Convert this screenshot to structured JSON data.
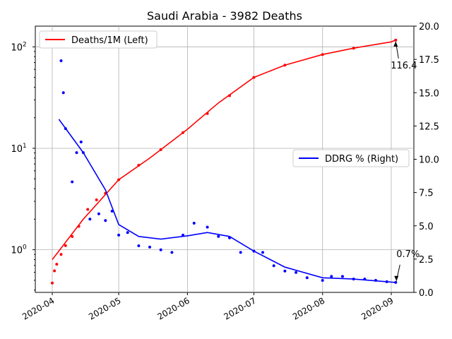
{
  "chart_data": {
    "type": "line",
    "title": "Saudi Arabia - 3982 Deaths",
    "x_ticks": [
      "2020-04",
      "2020-05",
      "2020-06",
      "2020-07",
      "2020-08",
      "2020-09"
    ],
    "x_range": [
      "2020-04-01",
      "2020-09-04"
    ],
    "left_axis": {
      "scale": "log",
      "ylim": [
        0.38,
        160
      ],
      "tick_labels": [
        "10^0",
        "10^1",
        "10^2"
      ],
      "grid": true
    },
    "right_axis": {
      "scale": "linear",
      "ylim": [
        0,
        20
      ],
      "tick_labels": [
        "0.0",
        "2.5",
        "5.0",
        "7.5",
        "10.0",
        "12.5",
        "15.0",
        "17.5",
        "20.0"
      ]
    },
    "legends": [
      {
        "label": "Deaths/1M (Left)",
        "color": "#ff0000",
        "placement": "upper-left"
      },
      {
        "label": "DDRG % (Right)",
        "color": "#0000ff",
        "placement": "center-right"
      }
    ],
    "annotations": [
      {
        "text": "116.4",
        "x": "2020-09-03",
        "series": "Deaths/1M (Left)",
        "y": 116.4
      },
      {
        "text": "0.7%",
        "x": "2020-09-03",
        "series": "DDRG % (Right)",
        "y": 0.7
      }
    ],
    "series": [
      {
        "name": "Deaths/1M (Left)",
        "axis": "left",
        "color": "#ff0000",
        "line_points": [
          {
            "x": "2020-04-01",
            "y": 0.8
          },
          {
            "x": "2020-04-15",
            "y": 2.0
          },
          {
            "x": "2020-05-01",
            "y": 4.9
          },
          {
            "x": "2020-05-15",
            "y": 8.0
          },
          {
            "x": "2020-06-01",
            "y": 15.4
          },
          {
            "x": "2020-06-15",
            "y": 28.0
          },
          {
            "x": "2020-07-01",
            "y": 50.0
          },
          {
            "x": "2020-07-15",
            "y": 66.0
          },
          {
            "x": "2020-08-01",
            "y": 84.0
          },
          {
            "x": "2020-08-15",
            "y": 97.0
          },
          {
            "x": "2020-09-01",
            "y": 112.0
          },
          {
            "x": "2020-09-03",
            "y": 116.4
          }
        ],
        "dot_points": [
          {
            "x": "2020-04-01",
            "y": 0.47
          },
          {
            "x": "2020-04-02",
            "y": 0.62
          },
          {
            "x": "2020-04-03",
            "y": 0.72
          },
          {
            "x": "2020-04-05",
            "y": 0.9
          },
          {
            "x": "2020-04-07",
            "y": 1.1
          },
          {
            "x": "2020-04-10",
            "y": 1.35
          },
          {
            "x": "2020-04-13",
            "y": 1.7
          },
          {
            "x": "2020-04-17",
            "y": 2.5
          },
          {
            "x": "2020-04-21",
            "y": 3.1
          },
          {
            "x": "2020-04-25",
            "y": 3.6
          },
          {
            "x": "2020-05-01",
            "y": 4.9
          },
          {
            "x": "2020-05-10",
            "y": 6.8
          },
          {
            "x": "2020-05-20",
            "y": 9.7
          },
          {
            "x": "2020-05-30",
            "y": 14.3
          },
          {
            "x": "2020-06-10",
            "y": 22.0
          },
          {
            "x": "2020-06-20",
            "y": 33.0
          },
          {
            "x": "2020-07-01",
            "y": 50.0
          },
          {
            "x": "2020-07-15",
            "y": 66.0
          },
          {
            "x": "2020-08-01",
            "y": 84.0
          },
          {
            "x": "2020-08-15",
            "y": 97.0
          },
          {
            "x": "2020-09-03",
            "y": 116.4
          }
        ]
      },
      {
        "name": "DDRG % (Right)",
        "axis": "right",
        "color": "#0000ff",
        "line_points": [
          {
            "x": "2020-04-04",
            "y": 13.0
          },
          {
            "x": "2020-04-15",
            "y": 10.5
          },
          {
            "x": "2020-04-25",
            "y": 7.7
          },
          {
            "x": "2020-05-01",
            "y": 5.1
          },
          {
            "x": "2020-05-10",
            "y": 4.2
          },
          {
            "x": "2020-05-20",
            "y": 4.0
          },
          {
            "x": "2020-06-01",
            "y": 4.25
          },
          {
            "x": "2020-06-10",
            "y": 4.5
          },
          {
            "x": "2020-06-20",
            "y": 4.2
          },
          {
            "x": "2020-07-01",
            "y": 3.1
          },
          {
            "x": "2020-07-15",
            "y": 1.9
          },
          {
            "x": "2020-08-01",
            "y": 1.1
          },
          {
            "x": "2020-08-15",
            "y": 1.0
          },
          {
            "x": "2020-09-03",
            "y": 0.75
          }
        ],
        "dot_points": [
          {
            "x": "2020-04-05",
            "y": 17.4
          },
          {
            "x": "2020-04-06",
            "y": 15.0
          },
          {
            "x": "2020-04-07",
            "y": 12.3
          },
          {
            "x": "2020-04-10",
            "y": 8.3
          },
          {
            "x": "2020-04-12",
            "y": 10.5
          },
          {
            "x": "2020-04-14",
            "y": 11.3
          },
          {
            "x": "2020-04-15",
            "y": 10.5
          },
          {
            "x": "2020-04-18",
            "y": 5.5
          },
          {
            "x": "2020-04-22",
            "y": 5.9
          },
          {
            "x": "2020-04-25",
            "y": 5.4
          },
          {
            "x": "2020-04-28",
            "y": 6.1
          },
          {
            "x": "2020-05-01",
            "y": 4.3
          },
          {
            "x": "2020-05-05",
            "y": 4.5
          },
          {
            "x": "2020-05-10",
            "y": 3.5
          },
          {
            "x": "2020-05-15",
            "y": 3.4
          },
          {
            "x": "2020-05-20",
            "y": 3.2
          },
          {
            "x": "2020-05-25",
            "y": 3.0
          },
          {
            "x": "2020-05-30",
            "y": 4.3
          },
          {
            "x": "2020-06-04",
            "y": 5.2
          },
          {
            "x": "2020-06-10",
            "y": 4.9
          },
          {
            "x": "2020-06-15",
            "y": 4.2
          },
          {
            "x": "2020-06-20",
            "y": 4.1
          },
          {
            "x": "2020-06-25",
            "y": 3.0
          },
          {
            "x": "2020-07-01",
            "y": 3.1
          },
          {
            "x": "2020-07-05",
            "y": 3.0
          },
          {
            "x": "2020-07-10",
            "y": 2.0
          },
          {
            "x": "2020-07-15",
            "y": 1.6
          },
          {
            "x": "2020-07-20",
            "y": 1.5
          },
          {
            "x": "2020-07-25",
            "y": 1.1
          },
          {
            "x": "2020-08-01",
            "y": 0.9
          },
          {
            "x": "2020-08-05",
            "y": 1.2
          },
          {
            "x": "2020-08-10",
            "y": 1.2
          },
          {
            "x": "2020-08-15",
            "y": 1.0
          },
          {
            "x": "2020-08-20",
            "y": 1.0
          },
          {
            "x": "2020-08-25",
            "y": 0.9
          },
          {
            "x": "2020-08-30",
            "y": 0.8
          },
          {
            "x": "2020-09-03",
            "y": 0.75
          }
        ]
      }
    ]
  }
}
